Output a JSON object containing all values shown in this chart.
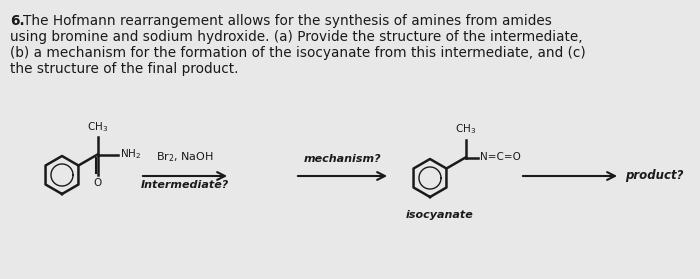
{
  "background_color": "#e8e8e8",
  "fig_width": 7.0,
  "fig_height": 2.79,
  "dpi": 100,
  "text_color": "#1a1a1a",
  "paragraph_line1": "6. The Hofmann rearrangement allows for the synthesis of amines from amides",
  "paragraph_line2": "using bromine and sodium hydroxide. (a) Provide the structure of the intermediate,",
  "paragraph_line3": "(b) a mechanism for the formation of the isocyanate from this intermediate, and (c)",
  "paragraph_line4": "the structure of the final product.",
  "fontsize_text": 9.8,
  "fontsize_chem": 7.5,
  "fontsize_label": 8.0
}
